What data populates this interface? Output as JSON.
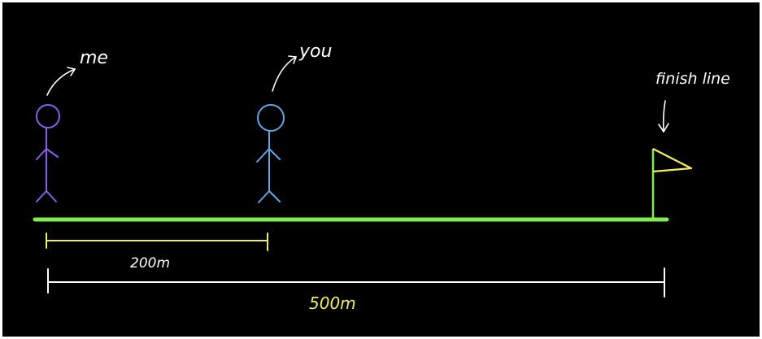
{
  "labels": {
    "me": "me",
    "you": "you",
    "finish": "finish line",
    "gap": "200m",
    "total": "500m"
  },
  "colors": {
    "background": "#000000",
    "me": "#8a5cf0",
    "you": "#5aa8e8",
    "track": "#7ff04a",
    "flag": "#f2f04a",
    "gap_marker": "#f2f04a",
    "total_marker": "#ffffff",
    "annotation": "#ffffff"
  }
}
